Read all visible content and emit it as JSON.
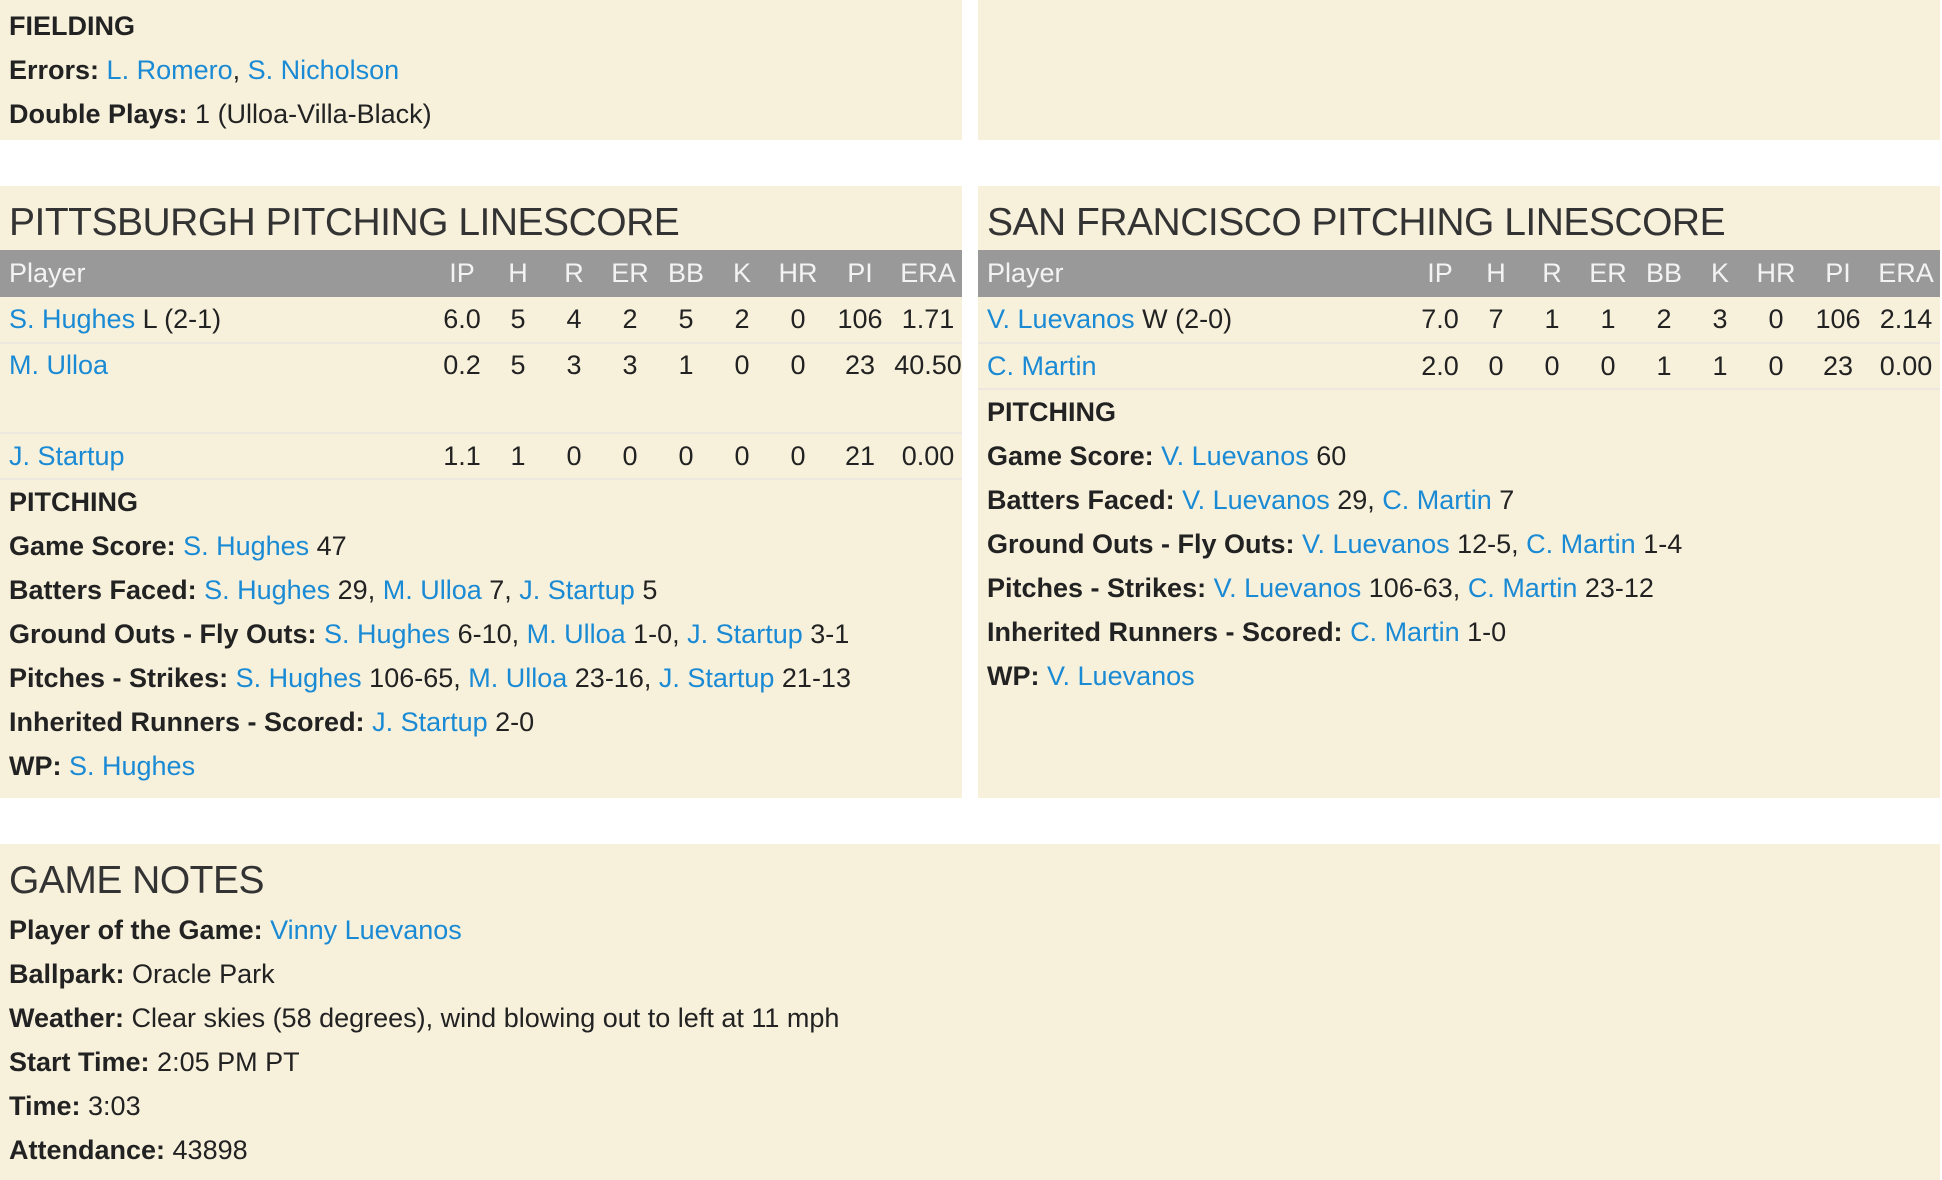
{
  "fielding": {
    "heading": "FIELDING",
    "lines": [
      [
        {
          "t": "Errors: ",
          "b": true
        },
        {
          "t": "L. Romero",
          "l": true
        },
        {
          "t": ", "
        },
        {
          "t": "S. Nicholson",
          "l": true
        }
      ],
      [
        {
          "t": "Double Plays: ",
          "b": true
        },
        {
          "t": "1 (Ulloa-Villa-Black)"
        }
      ]
    ]
  },
  "columns": [
    "Player",
    "IP",
    "H",
    "R",
    "ER",
    "BB",
    "K",
    "HR",
    "PI",
    "ERA"
  ],
  "pittsburgh": {
    "title": "PITTSBURGH PITCHING LINESCORE",
    "rows": [
      {
        "name": "S. Hughes",
        "dec": " L (2-1)",
        "stats": [
          "6.0",
          "5",
          "4",
          "2",
          "5",
          "2",
          "0",
          "106",
          "1.71"
        ]
      },
      {
        "name": "M. Ulloa",
        "dec": "",
        "stats": [
          "0.2",
          "5",
          "3",
          "3",
          "1",
          "0",
          "0",
          "23",
          "40.50"
        ],
        "tall": true
      },
      {
        "name": "J. Startup",
        "dec": "",
        "stats": [
          "1.1",
          "1",
          "0",
          "0",
          "0",
          "0",
          "0",
          "21",
          "0.00"
        ]
      }
    ],
    "heading": "PITCHING",
    "lines": [
      [
        {
          "t": "Game Score: ",
          "b": true
        },
        {
          "t": "S. Hughes",
          "l": true
        },
        {
          "t": " 47"
        }
      ],
      [
        {
          "t": "Batters Faced: ",
          "b": true
        },
        {
          "t": "S. Hughes",
          "l": true
        },
        {
          "t": " 29, "
        },
        {
          "t": "M. Ulloa",
          "l": true
        },
        {
          "t": " 7, "
        },
        {
          "t": "J. Startup",
          "l": true
        },
        {
          "t": " 5"
        }
      ],
      [
        {
          "t": "Ground Outs - Fly Outs: ",
          "b": true
        },
        {
          "t": "S. Hughes",
          "l": true
        },
        {
          "t": " 6-10, "
        },
        {
          "t": "M. Ulloa",
          "l": true
        },
        {
          "t": " 1-0, "
        },
        {
          "t": "J. Startup",
          "l": true
        },
        {
          "t": " 3-1"
        }
      ],
      [
        {
          "t": "Pitches - Strikes: ",
          "b": true
        },
        {
          "t": "S. Hughes",
          "l": true
        },
        {
          "t": " 106-65, "
        },
        {
          "t": "M. Ulloa",
          "l": true
        },
        {
          "t": " 23-16, "
        },
        {
          "t": "J. Startup",
          "l": true
        },
        {
          "t": " 21-13"
        }
      ],
      [
        {
          "t": "Inherited Runners - Scored: ",
          "b": true
        },
        {
          "t": "J. Startup",
          "l": true
        },
        {
          "t": " 2-0"
        }
      ],
      [
        {
          "t": "WP: ",
          "b": true
        },
        {
          "t": "S. Hughes",
          "l": true
        }
      ]
    ]
  },
  "sanfrancisco": {
    "title": "SAN FRANCISCO PITCHING LINESCORE",
    "rows": [
      {
        "name": "V. Luevanos",
        "dec": " W (2-0)",
        "stats": [
          "7.0",
          "7",
          "1",
          "1",
          "2",
          "3",
          "0",
          "106",
          "2.14"
        ]
      },
      {
        "name": "C. Martin",
        "dec": "",
        "stats": [
          "2.0",
          "0",
          "0",
          "0",
          "1",
          "1",
          "0",
          "23",
          "0.00"
        ]
      }
    ],
    "heading": "PITCHING",
    "lines": [
      [
        {
          "t": "Game Score: ",
          "b": true
        },
        {
          "t": "V. Luevanos",
          "l": true
        },
        {
          "t": " 60"
        }
      ],
      [
        {
          "t": "Batters Faced: ",
          "b": true
        },
        {
          "t": "V. Luevanos",
          "l": true
        },
        {
          "t": " 29, "
        },
        {
          "t": "C. Martin",
          "l": true
        },
        {
          "t": " 7"
        }
      ],
      [
        {
          "t": "Ground Outs - Fly Outs: ",
          "b": true
        },
        {
          "t": "V. Luevanos",
          "l": true
        },
        {
          "t": " 12-5, "
        },
        {
          "t": "C. Martin",
          "l": true
        },
        {
          "t": " 1-4"
        }
      ],
      [
        {
          "t": "Pitches - Strikes: ",
          "b": true
        },
        {
          "t": "V. Luevanos",
          "l": true
        },
        {
          "t": " 106-63, "
        },
        {
          "t": "C. Martin",
          "l": true
        },
        {
          "t": " 23-12"
        }
      ],
      [
        {
          "t": "Inherited Runners - Scored: ",
          "b": true
        },
        {
          "t": "C. Martin",
          "l": true
        },
        {
          "t": " 1-0"
        }
      ],
      [
        {
          "t": "WP: ",
          "b": true
        },
        {
          "t": "V. Luevanos",
          "l": true
        }
      ]
    ]
  },
  "notes": {
    "title": "GAME NOTES",
    "lines": [
      [
        {
          "t": "Player of the Game: ",
          "b": true
        },
        {
          "t": "Vinny Luevanos",
          "l": true
        }
      ],
      [
        {
          "t": "Ballpark: ",
          "b": true
        },
        {
          "t": "Oracle Park"
        }
      ],
      [
        {
          "t": "Weather: ",
          "b": true
        },
        {
          "t": "Clear skies (58 degrees), wind blowing out to left at 11 mph"
        }
      ],
      [
        {
          "t": "Start Time: ",
          "b": true
        },
        {
          "t": "2:05 PM PT"
        }
      ],
      [
        {
          "t": "Time: ",
          "b": true
        },
        {
          "t": "3:03"
        }
      ],
      [
        {
          "t": "Attendance: ",
          "b": true
        },
        {
          "t": "43898"
        }
      ]
    ]
  },
  "colors": {
    "panel": "#f7f1dc",
    "header": "#999999",
    "link": "#1a8ad4"
  }
}
